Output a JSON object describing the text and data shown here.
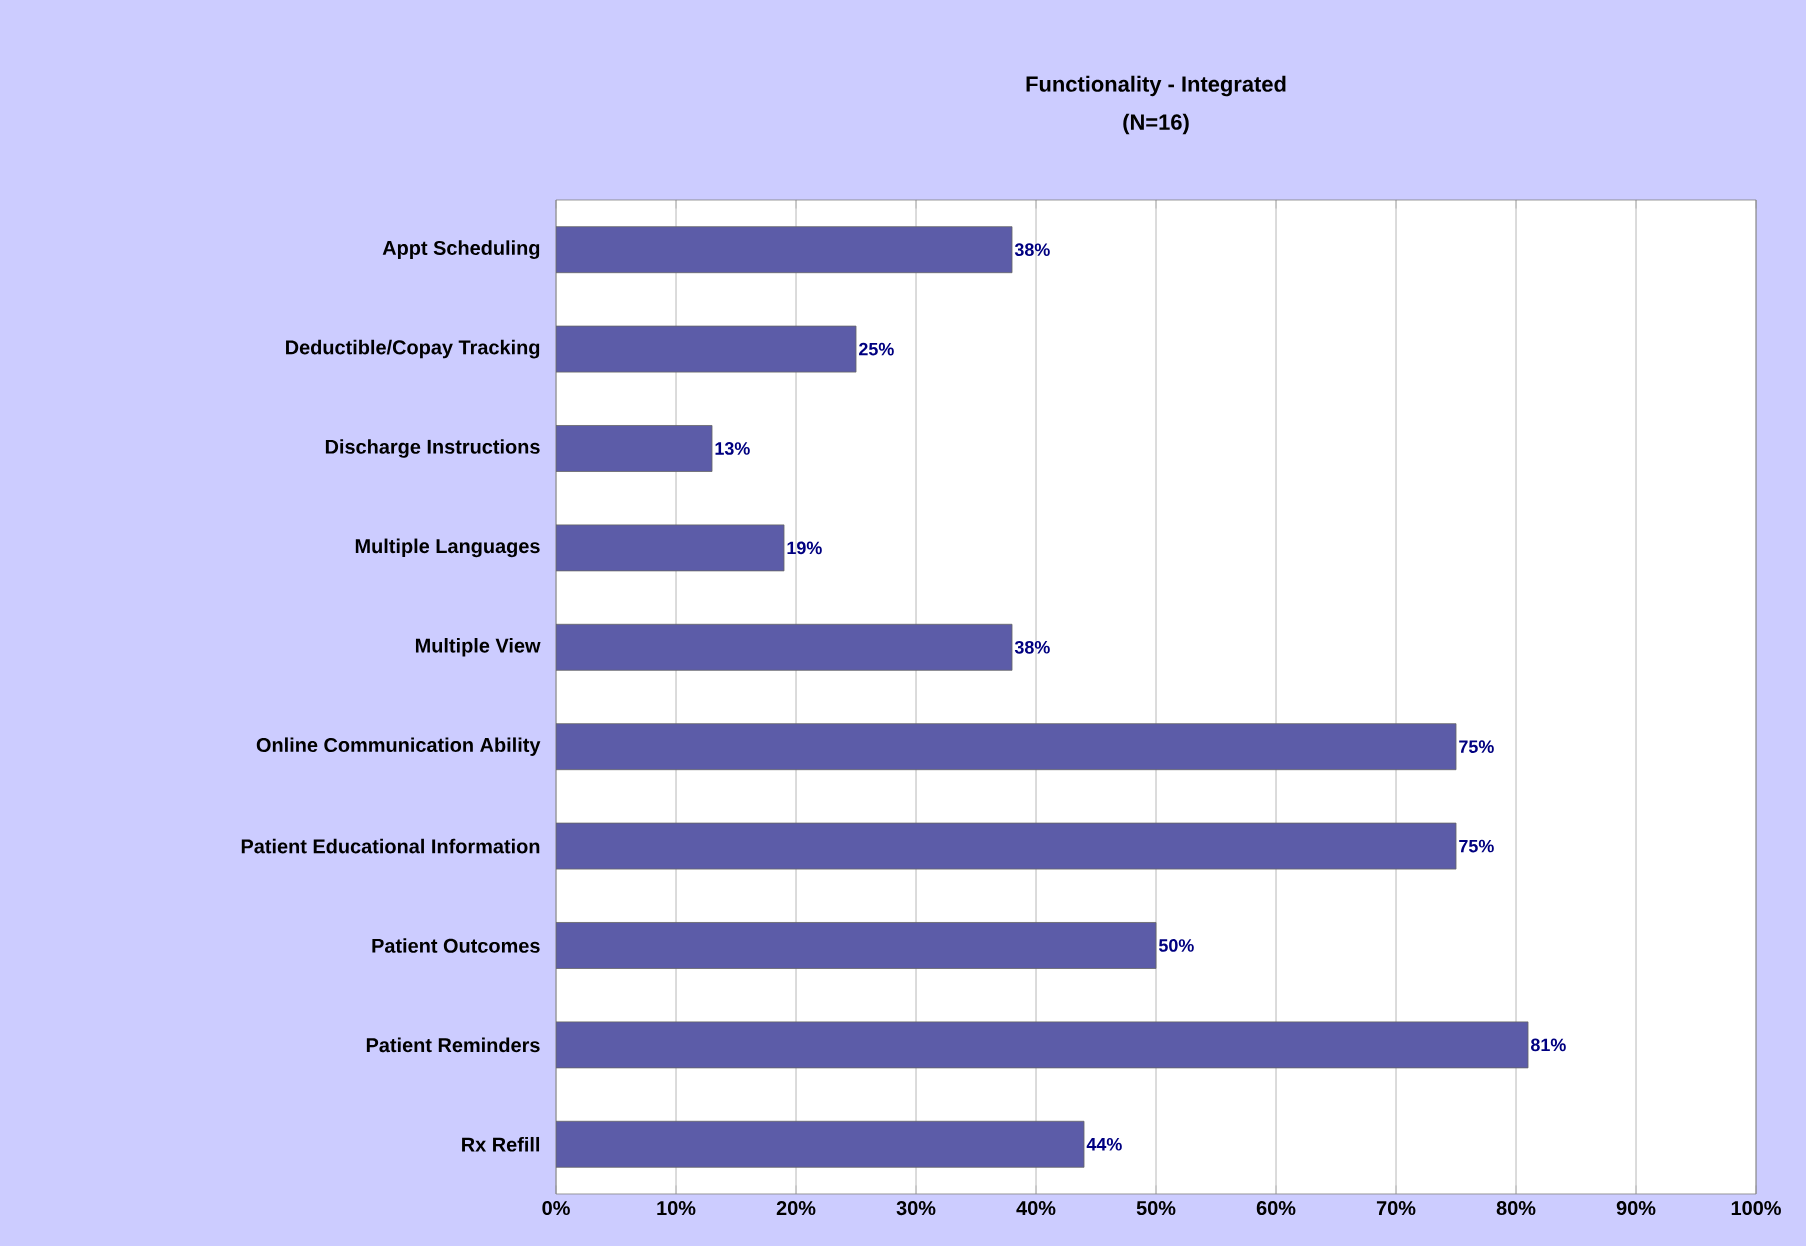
{
  "chart_data": {
    "type": "bar",
    "orientation": "horizontal",
    "title": "Functionality - Integrated",
    "subtitle": "(N=16)",
    "categories": [
      "Appt Scheduling",
      "Deductible/Copay Tracking",
      "Discharge Instructions",
      "Multiple Languages",
      "Multiple View",
      "Online Communication Ability",
      "Patient Educational Information",
      "Patient Outcomes",
      "Patient Reminders",
      "Rx Refill"
    ],
    "values": [
      38,
      25,
      13,
      19,
      38,
      75,
      75,
      50,
      81,
      44
    ],
    "value_labels": [
      "38%",
      "25%",
      "13%",
      "19%",
      "38%",
      "75%",
      "75%",
      "50%",
      "81%",
      "44%"
    ],
    "color": "#5c5ca8",
    "xlim": [
      0,
      100
    ],
    "xticks": [
      {
        "value": 0,
        "label": "0%"
      },
      {
        "value": 10,
        "label": "10%"
      },
      {
        "value": 20,
        "label": "20%"
      },
      {
        "value": 30,
        "label": "30%"
      },
      {
        "value": 40,
        "label": "40%"
      },
      {
        "value": 50,
        "label": "50%"
      },
      {
        "value": 60,
        "label": "60%"
      },
      {
        "value": 70,
        "label": "70%"
      },
      {
        "value": 80,
        "label": "80%"
      },
      {
        "value": 90,
        "label": "90%"
      },
      {
        "value": 100,
        "label": "100%"
      }
    ],
    "grid": "x"
  }
}
